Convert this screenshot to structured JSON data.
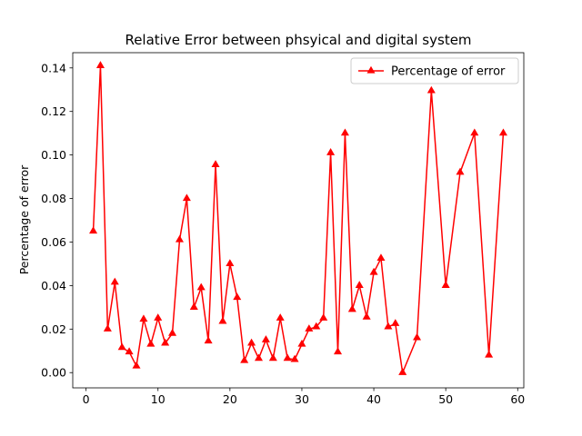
{
  "chart_data": {
    "type": "line",
    "title": "Relative Error between phsyical and digital system",
    "xlabel": "",
    "ylabel": "Percentage of error",
    "xlim": [
      -1.85,
      60.85
    ],
    "ylim": [
      -0.007,
      0.147
    ],
    "xticks": [
      0,
      10,
      20,
      30,
      40,
      50,
      60
    ],
    "xtick_labels": [
      "0",
      "10",
      "20",
      "30",
      "40",
      "50",
      "60"
    ],
    "yticks": [
      0.0,
      0.02,
      0.04,
      0.06,
      0.08,
      0.1,
      0.12,
      0.14
    ],
    "ytick_labels": [
      "0.00",
      "0.02",
      "0.04",
      "0.06",
      "0.08",
      "0.10",
      "0.12",
      "0.14"
    ],
    "grid": false,
    "legend_position": "top-right",
    "series": [
      {
        "name": "Percentage of error",
        "color": "#ff0000",
        "marker": "triangle-up",
        "x": [
          1,
          2,
          3,
          4,
          5,
          6,
          7,
          8,
          9,
          10,
          11,
          12,
          13,
          14,
          15,
          16,
          17,
          18,
          19,
          20,
          21,
          22,
          23,
          24,
          25,
          26,
          27,
          28,
          29,
          30,
          31,
          32,
          33,
          34,
          35,
          36,
          37,
          38,
          39,
          40,
          41,
          42,
          43,
          44,
          46,
          48,
          50,
          52,
          54,
          56,
          58
        ],
        "y": [
          0.065,
          0.141,
          0.02,
          0.0415,
          0.0115,
          0.0095,
          0.003,
          0.0245,
          0.013,
          0.025,
          0.0135,
          0.018,
          0.061,
          0.08,
          0.03,
          0.039,
          0.0145,
          0.0955,
          0.0235,
          0.05,
          0.0345,
          0.0055,
          0.0135,
          0.0065,
          0.015,
          0.0065,
          0.025,
          0.0065,
          0.006,
          0.013,
          0.02,
          0.021,
          0.025,
          0.101,
          0.0095,
          0.11,
          0.029,
          0.04,
          0.0255,
          0.046,
          0.0525,
          0.021,
          0.0225,
          0.0,
          0.016,
          0.1295,
          0.04,
          0.092,
          0.11,
          0.008,
          0.11
        ]
      }
    ]
  }
}
